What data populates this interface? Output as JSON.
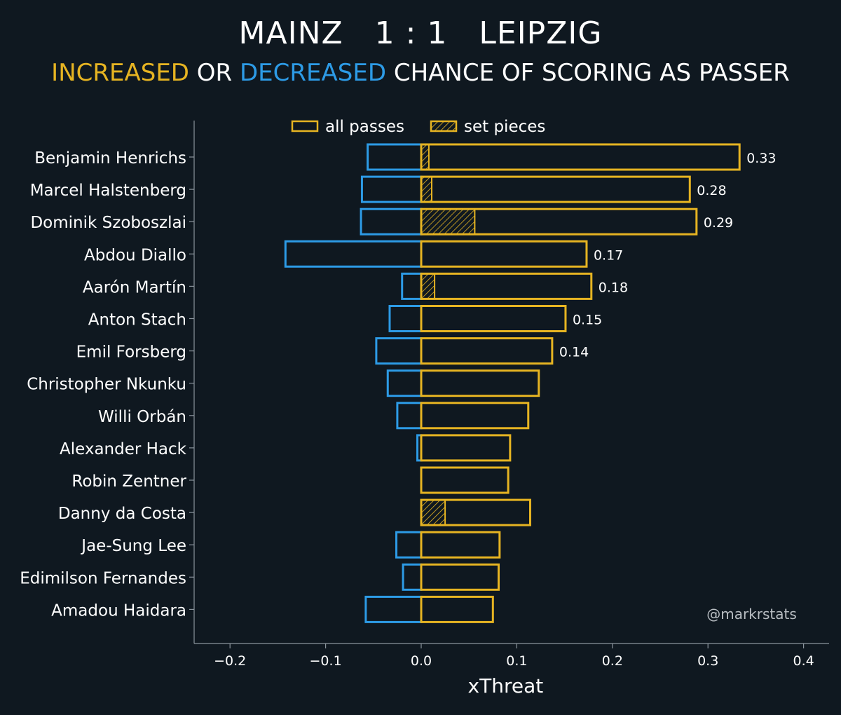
{
  "header": {
    "home_team": "MAINZ",
    "score": "1 : 1",
    "away_team": "LEIPZIG",
    "subtitle_increased": "INCREASED",
    "subtitle_or": " OR ",
    "subtitle_decreased": "DECREASED",
    "subtitle_rest": " CHANCE OF SCORING AS PASSER"
  },
  "colors": {
    "background": "#0f1820",
    "increase": "#e6b422",
    "decrease": "#2d9be6",
    "axis": "#8a949c",
    "text": "#ffffff"
  },
  "watermark": "@markrstats",
  "chart_data": {
    "type": "bar",
    "orientation": "horizontal",
    "xlabel": "xThreat",
    "ylabel": "",
    "xlim": [
      -0.24,
      0.43
    ],
    "xticks": [
      -0.2,
      -0.1,
      0.0,
      0.1,
      0.2,
      0.3,
      0.4
    ],
    "xtick_labels": [
      "−0.2",
      "−0.1",
      "0.0",
      "0.1",
      "0.2",
      "0.3",
      "0.4"
    ],
    "grid": false,
    "legend": {
      "position": "top-center",
      "entries": [
        "all passes",
        "set pieces"
      ]
    },
    "categories": [
      "Benjamin Henrichs",
      "Marcel Halstenberg",
      "Dominik Szoboszlai",
      "Abdou Diallo",
      "Aarón Martín",
      "Anton Stach",
      "Emil Forsberg",
      "Christopher Nkunku",
      "Willi Orbán",
      "Alexander Hack",
      "Robin Zentner",
      "Danny da Costa",
      "Jae-Sung Lee",
      "Edimilson Fernandes",
      "Amadou Haidara"
    ],
    "series": [
      {
        "name": "all passes (increased)",
        "values": [
          0.333,
          0.281,
          0.288,
          0.173,
          0.178,
          0.151,
          0.137,
          0.123,
          0.112,
          0.093,
          0.091,
          0.114,
          0.082,
          0.081,
          0.075
        ]
      },
      {
        "name": "all passes (decreased)",
        "values": [
          -0.056,
          -0.062,
          -0.063,
          -0.142,
          -0.02,
          -0.033,
          -0.047,
          -0.035,
          -0.025,
          -0.004,
          0.0,
          0.0,
          -0.026,
          -0.019,
          -0.058
        ]
      },
      {
        "name": "set pieces",
        "values": [
          0.008,
          0.011,
          0.056,
          0.0,
          0.014,
          0.0,
          0.0,
          0.0,
          0.0,
          0.0,
          0.0,
          0.025,
          0.0,
          0.0,
          0.0
        ]
      }
    ],
    "data_labels": [
      "0.33",
      "0.28",
      "0.29",
      "0.17",
      "0.18",
      "0.15",
      "0.14",
      "",
      "",
      "",
      "",
      "",
      "",
      "",
      ""
    ]
  }
}
